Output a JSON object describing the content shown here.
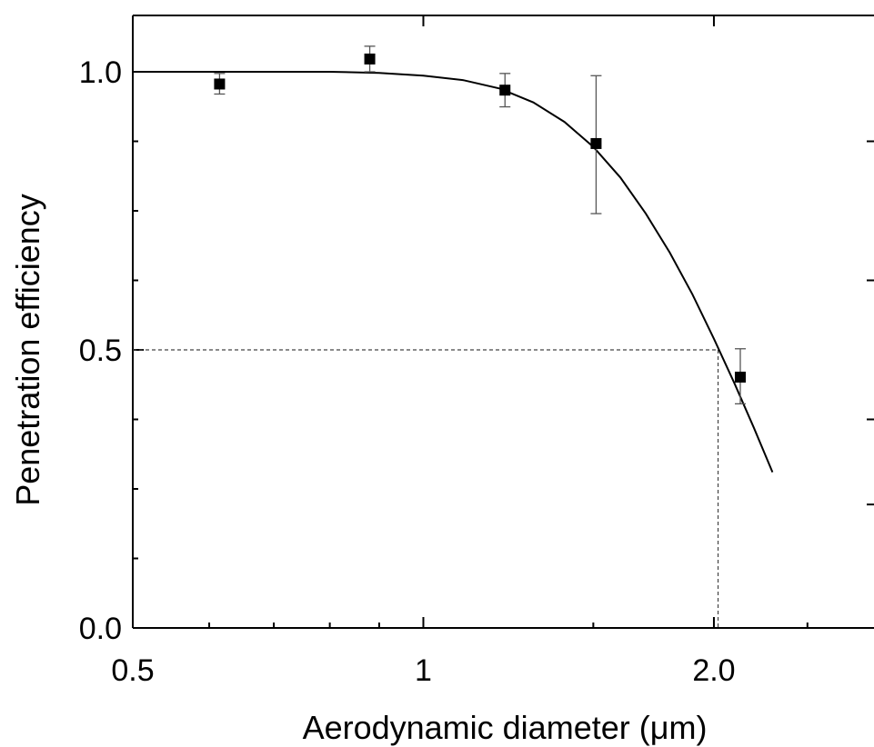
{
  "chart_data": {
    "type": "scatter",
    "xlabel": "Aerodynamic diameter (μm)",
    "ylabel": "Penetration efficiency",
    "x_scale": "log",
    "xlim": [
      0.5,
      2.85
    ],
    "ylim": [
      0.0,
      1.1
    ],
    "x_ticks": [
      {
        "value": 0.5,
        "label": "0.5"
      },
      {
        "value": 1.0,
        "label": "1"
      },
      {
        "value": 2.0,
        "label": "2.0"
      }
    ],
    "y_ticks": [
      {
        "value": 0.0,
        "label": "0.0"
      },
      {
        "value": 0.5,
        "label": "0.5"
      },
      {
        "value": 1.0,
        "label": "1.0"
      }
    ],
    "series": [
      {
        "kind": "points_with_error_bars",
        "x": [
          0.615,
          0.88,
          1.215,
          1.51,
          2.13
        ],
        "y": [
          0.978,
          1.023,
          0.967,
          0.871,
          0.451
        ],
        "yerr_low": [
          0.96,
          1.0,
          0.937,
          0.745,
          0.403
        ],
        "yerr_high": [
          0.997,
          1.046,
          0.997,
          0.993,
          0.502
        ]
      },
      {
        "kind": "fit_curve",
        "x": [
          0.5,
          0.6,
          0.7,
          0.8,
          0.9,
          1.0,
          1.1,
          1.2,
          1.3,
          1.4,
          1.5,
          1.6,
          1.7,
          1.8,
          1.9,
          2.0,
          2.1,
          2.2,
          2.3
        ],
        "y": [
          1.0,
          1.0,
          1.0,
          1.0,
          0.998,
          0.993,
          0.985,
          0.97,
          0.945,
          0.91,
          0.865,
          0.81,
          0.745,
          0.675,
          0.6,
          0.52,
          0.44,
          0.36,
          0.28
        ]
      }
    ],
    "annotations": [
      {
        "kind": "dashed_reference",
        "x": 2.02,
        "y": 0.5
      }
    ],
    "grid": false,
    "colors": {
      "points": "#000000",
      "curve": "#000000",
      "error_bars": "#555555",
      "reference_line": "#444444"
    }
  }
}
